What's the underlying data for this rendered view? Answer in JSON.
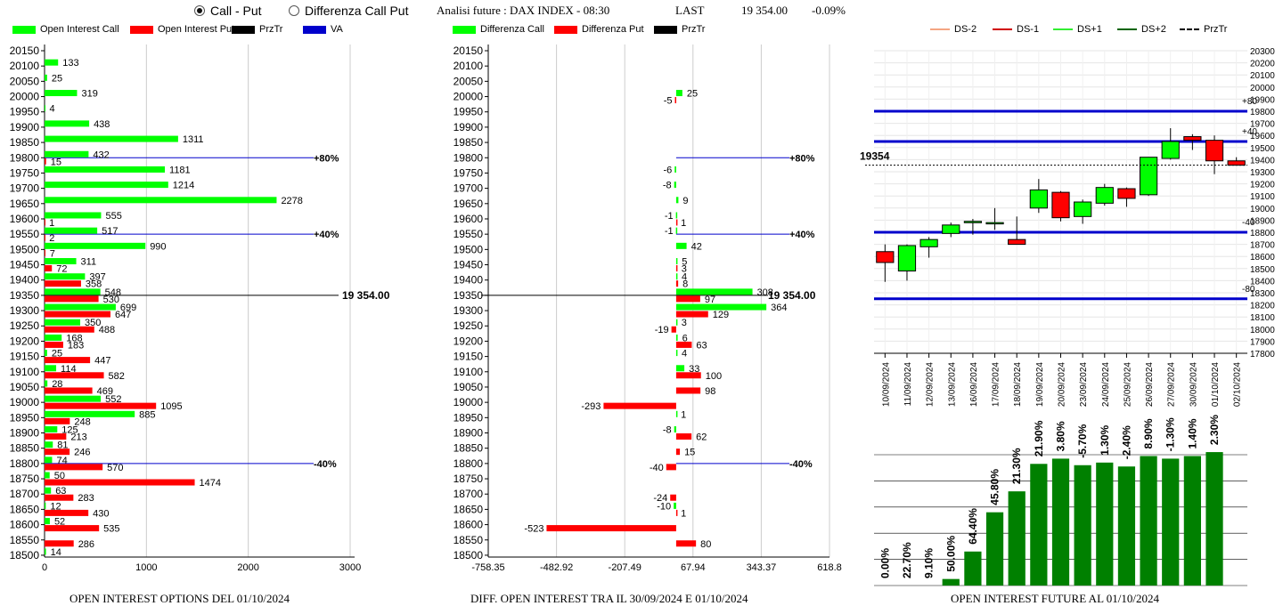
{
  "header": {
    "radio_call_put": "Call - Put",
    "radio_diff": "Differenza Call Put",
    "analysis": "Analisi future : DAX INDEX - 08:30",
    "last_label": "LAST",
    "last_value": "19 354.00",
    "change": "-0.09%"
  },
  "legends": {
    "p1": [
      "Open Interest Call",
      "Open Interest Put",
      "PrzTr",
      "VA"
    ],
    "p2": [
      "Differenza Call",
      "Differenza Put",
      "PrzTr"
    ],
    "p3": [
      "DS-2",
      "DS-1",
      "DS+1",
      "DS+2",
      "PrzTr"
    ]
  },
  "colors": {
    "call": "#00ff00",
    "put": "#ff0000",
    "blue": "#0000cc",
    "ds_minus2": "#f4a582",
    "ds_minus1": "#d00000",
    "ds_plus1": "#33ee33",
    "ds_plus2": "#006400",
    "bar_green": "#008000"
  },
  "footers": {
    "p1": "OPEN INTEREST OPTIONS DEL 01/10/2024",
    "p2": "DIFF. OPEN INTEREST TRA IL 30/09/2024 E 01/10/2024",
    "p3": "OPEN INTEREST FUTURE AL 01/10/2024"
  },
  "chart_data": [
    {
      "type": "bar",
      "orientation": "horizontal",
      "strikes": [
        "20150",
        "20100",
        "20050",
        "20000",
        "19950",
        "19900",
        "19850",
        "19800",
        "19750",
        "19700",
        "19650",
        "19600",
        "19550",
        "19500",
        "19450",
        "19400",
        "19350",
        "19300",
        "19250",
        "19200",
        "19150",
        "19100",
        "19050",
        "19000",
        "18950",
        "18900",
        "18850",
        "18800",
        "18750",
        "18700",
        "18650",
        "18600",
        "18550",
        "18500"
      ],
      "series": [
        {
          "name": "Open Interest Call",
          "values": [
            null,
            133,
            25,
            319,
            4,
            438,
            1311,
            432,
            1181,
            1214,
            2278,
            555,
            517,
            990,
            311,
            397,
            548,
            699,
            350,
            168,
            25,
            114,
            28,
            552,
            885,
            125,
            81,
            74,
            50,
            63,
            12,
            52,
            null,
            14
          ]
        },
        {
          "name": "Open Interest Put",
          "values": [
            null,
            null,
            null,
            null,
            null,
            null,
            null,
            15,
            null,
            null,
            null,
            1,
            2,
            7,
            72,
            358,
            530,
            647,
            488,
            183,
            447,
            582,
            469,
            1095,
            248,
            213,
            246,
            570,
            1474,
            283,
            430,
            535,
            286,
            null
          ]
        }
      ],
      "x_ticks": [
        "0",
        "1000",
        "2000",
        "3000"
      ],
      "xlim": [
        0,
        3000
      ],
      "price_line": {
        "strike": 19350,
        "label": "19 354.00"
      },
      "va_lines": [
        {
          "strike": 19800,
          "label": "+80%"
        },
        {
          "strike": 19550,
          "label": "+40%"
        },
        {
          "strike": 18800,
          "label": "-40%"
        }
      ]
    },
    {
      "type": "bar",
      "orientation": "horizontal",
      "strikes": [
        "20150",
        "20100",
        "20050",
        "20000",
        "19950",
        "19900",
        "19850",
        "19800",
        "19750",
        "19700",
        "19650",
        "19600",
        "19550",
        "19500",
        "19450",
        "19400",
        "19350",
        "19300",
        "19250",
        "19200",
        "19150",
        "19100",
        "19050",
        "19000",
        "18950",
        "18900",
        "18850",
        "18800",
        "18750",
        "18700",
        "18650",
        "18600",
        "18550",
        "18500"
      ],
      "series": [
        {
          "name": "Differenza Call",
          "values": [
            null,
            null,
            null,
            25,
            null,
            null,
            null,
            null,
            -6,
            -8,
            9,
            -1,
            -1,
            42,
            5,
            4,
            308,
            364,
            3,
            6,
            4,
            33,
            null,
            null,
            1,
            -8,
            null,
            null,
            null,
            null,
            -10,
            null,
            null,
            null
          ]
        },
        {
          "name": "Differenza Put",
          "values": [
            null,
            null,
            null,
            -5,
            null,
            null,
            null,
            null,
            null,
            null,
            null,
            1,
            null,
            null,
            3,
            8,
            97,
            129,
            -19,
            63,
            null,
            100,
            98,
            -293,
            null,
            62,
            15,
            -40,
            null,
            -24,
            1,
            -523,
            80,
            null
          ]
        }
      ],
      "x_ticks": [
        "-758.35",
        "-482.92",
        "-207.49",
        "67.94",
        "343.37",
        "618.8"
      ],
      "xlim": [
        -758.35,
        618.8
      ],
      "price_line": {
        "strike": 19350,
        "label": "19 354.00"
      },
      "va_lines": [
        {
          "strike": 19800,
          "label": "+80%"
        },
        {
          "strike": 19550,
          "label": "+40%"
        },
        {
          "strike": 18800,
          "label": "-40%"
        }
      ]
    },
    {
      "type": "candlestick",
      "x": [
        "10/09/2024",
        "11/09/2024",
        "12/09/2024",
        "13/09/2024",
        "16/09/2024",
        "17/09/2024",
        "18/09/2024",
        "19/09/2024",
        "20/09/2024",
        "23/09/2024",
        "24/09/2024",
        "25/09/2024",
        "26/09/2024",
        "27/09/2024",
        "30/09/2024",
        "01/10/2024",
        "02/10/2024"
      ],
      "ohlc": [
        {
          "o": 18640,
          "h": 18700,
          "l": 18390,
          "c": 18550
        },
        {
          "o": 18480,
          "h": 18700,
          "l": 18400,
          "c": 18690
        },
        {
          "o": 18680,
          "h": 18760,
          "l": 18590,
          "c": 18740
        },
        {
          "o": 18790,
          "h": 18880,
          "l": 18760,
          "c": 18860
        },
        {
          "o": 18890,
          "h": 18910,
          "l": 18780,
          "c": 18890
        },
        {
          "o": 18880,
          "h": 19000,
          "l": 18820,
          "c": 18880
        },
        {
          "o": 18740,
          "h": 18930,
          "l": 18700,
          "c": 18700
        },
        {
          "o": 19000,
          "h": 19240,
          "l": 18960,
          "c": 19150
        },
        {
          "o": 19130,
          "h": 19140,
          "l": 18890,
          "c": 18920
        },
        {
          "o": 18930,
          "h": 19070,
          "l": 18870,
          "c": 19050
        },
        {
          "o": 19040,
          "h": 19200,
          "l": 19020,
          "c": 19170
        },
        {
          "o": 19160,
          "h": 19170,
          "l": 19010,
          "c": 19080
        },
        {
          "o": 19110,
          "h": 19420,
          "l": 19100,
          "c": 19420
        },
        {
          "o": 19410,
          "h": 19660,
          "l": 19400,
          "c": 19550
        },
        {
          "o": 19590,
          "h": 19610,
          "l": 19480,
          "c": 19560
        },
        {
          "o": 19560,
          "h": 19600,
          "l": 19280,
          "c": 19390
        },
        {
          "o": 19390,
          "h": 19420,
          "l": 19354,
          "c": 19354
        }
      ],
      "y_ticks": [
        "17800",
        "17900",
        "18000",
        "18100",
        "18200",
        "18300",
        "18400",
        "18500",
        "18600",
        "18700",
        "18800",
        "18900",
        "19000",
        "19100",
        "19200",
        "19300",
        "19400",
        "19500",
        "19600",
        "19700",
        "19800",
        "19900",
        "20000",
        "20100",
        "20200",
        "20300"
      ],
      "ylim": [
        17800,
        20300
      ],
      "price_label": "19354",
      "levels": [
        {
          "value": 19800,
          "label": "+80"
        },
        {
          "value": 19550,
          "label": "+40"
        },
        {
          "value": 18800,
          "label": "-40"
        },
        {
          "value": 18250,
          "label": "-80"
        }
      ]
    },
    {
      "type": "bar",
      "categories": [
        "10/09/2024",
        "11/09/2024",
        "12/09/2024",
        "13/09/2024",
        "16/09/2024",
        "17/09/2024",
        "18/09/2024",
        "19/09/2024",
        "20/09/2024",
        "23/09/2024",
        "24/09/2024",
        "25/09/2024",
        "26/09/2024",
        "27/09/2024",
        "30/09/2024",
        "01/10/2024",
        "02/10/2024"
      ],
      "values": [
        0,
        0,
        0,
        0.5,
        2.6,
        5.6,
        7.2,
        9.3,
        9.7,
        9.2,
        9.4,
        9.1,
        9.9,
        9.7,
        9.9,
        10.2,
        null
      ],
      "labels": [
        "0.00%",
        "22.70%",
        "9.10%",
        "50.00%",
        "64.40%",
        "45.80%",
        "21.30%",
        "21.90%",
        "3.80%",
        "-5.70%",
        "1.30%",
        "-2.40%",
        "8.90%",
        "-1.30%",
        "1.40%",
        "2.30%",
        ""
      ]
    }
  ]
}
